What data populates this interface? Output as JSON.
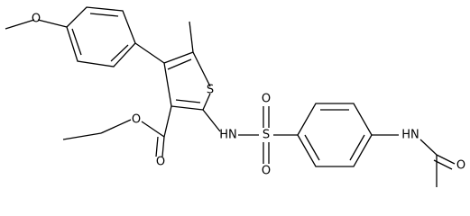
{
  "atoms": [
    {
      "label": "O"
    },
    {
      "label": "S"
    },
    {
      "label": "O"
    },
    {
      "label": "O"
    },
    {
      "label": "HN"
    },
    {
      "label": "S"
    },
    {
      "label": "O"
    },
    {
      "label": "O"
    },
    {
      "label": "HN"
    },
    {
      "label": "O"
    }
  ]
}
